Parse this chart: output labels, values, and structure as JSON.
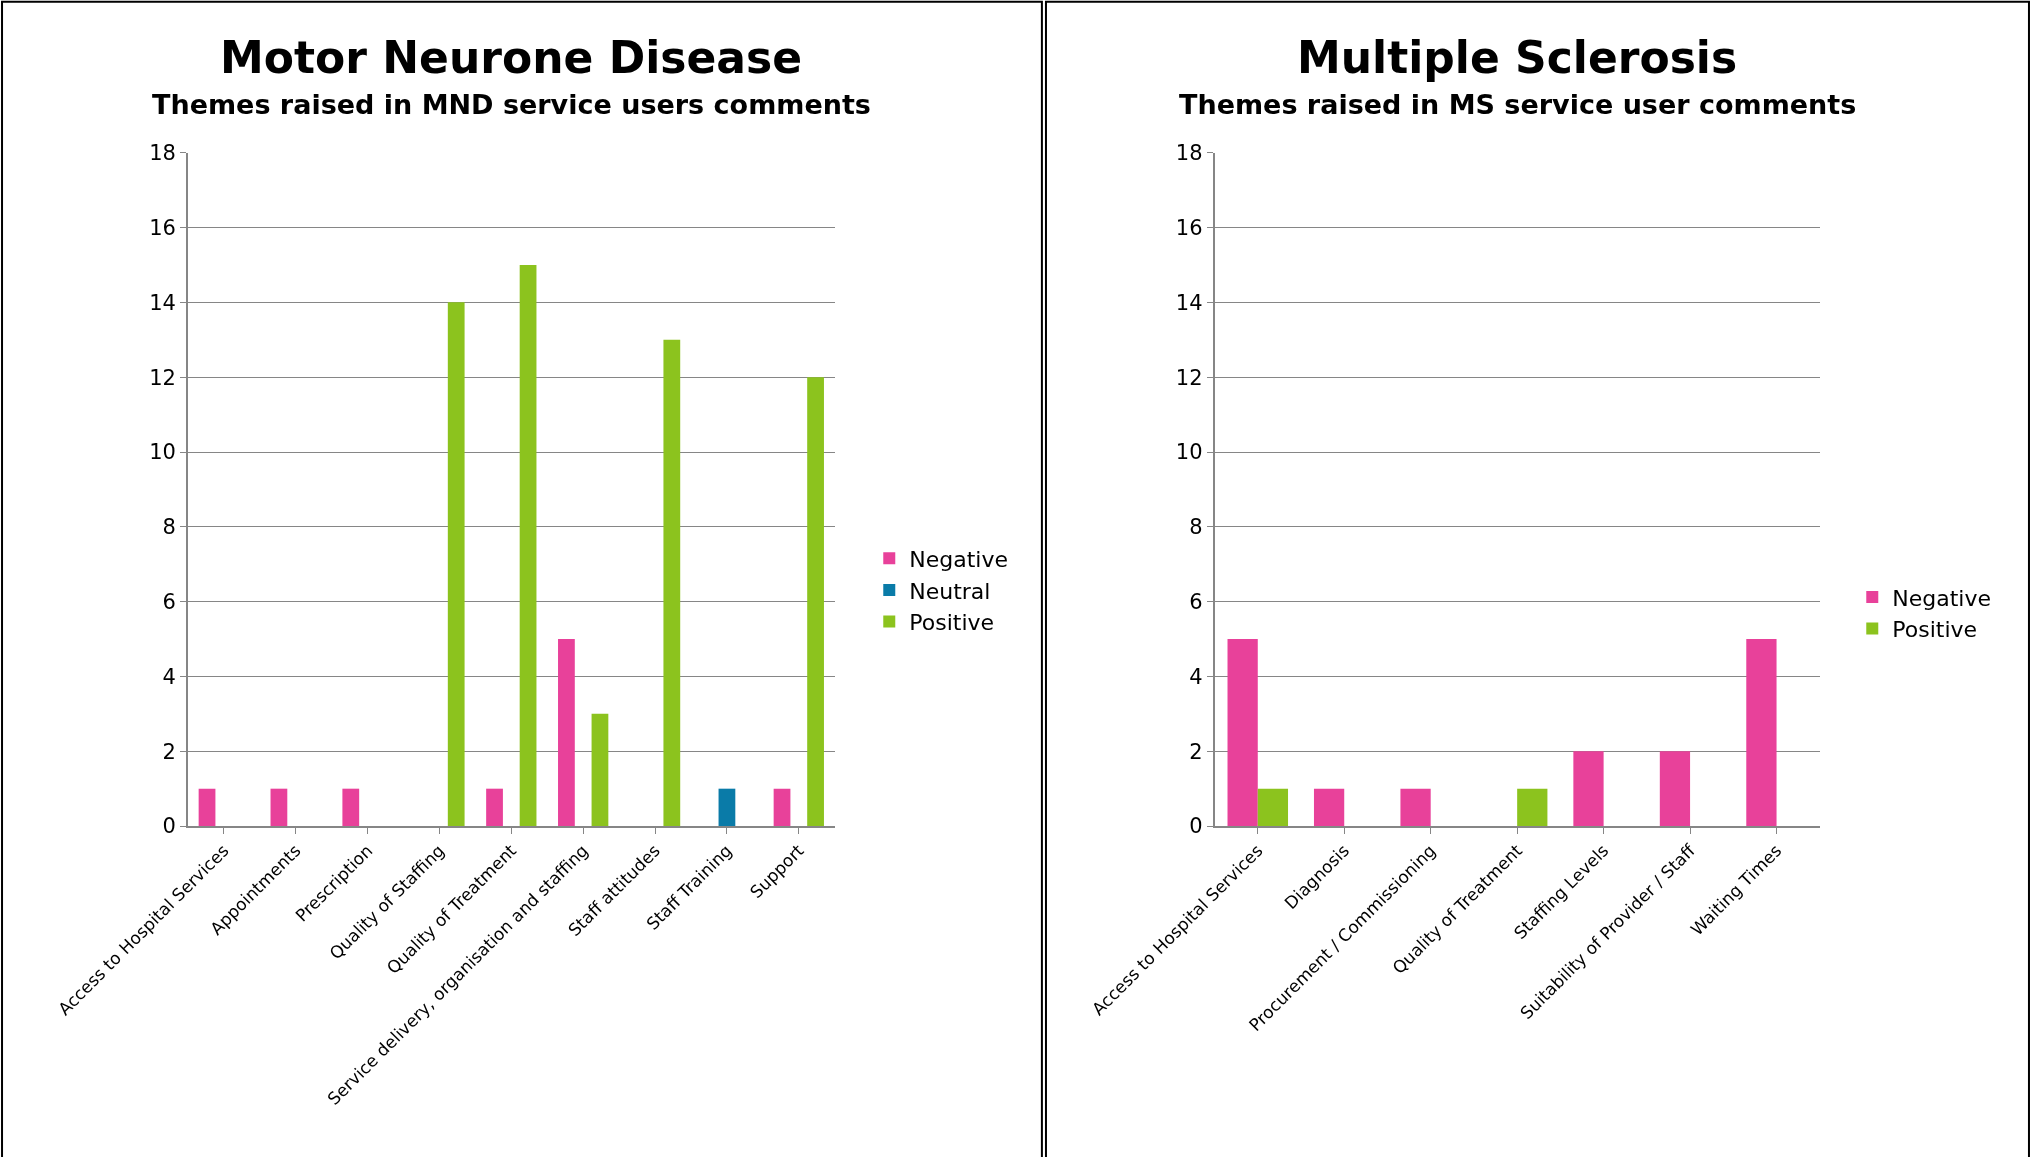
{
  "chart_data": [
    {
      "type": "bar",
      "title": "Motor Neurone Disease",
      "subtitle": "Themes raised in MND service users comments",
      "categories": [
        "Access to Hospital Services",
        "Appointments",
        "Prescription",
        "Quality of Staffing",
        "Quality of Treatment",
        "Service delivery, organisation and staffing",
        "Staff attitudes",
        "Staff Training",
        "Support"
      ],
      "series": [
        {
          "name": "Negative",
          "color": "#e8419a",
          "values": [
            1,
            1,
            1,
            null,
            1,
            5,
            null,
            null,
            1
          ]
        },
        {
          "name": "Neutral",
          "color": "#0a7ba8",
          "values": [
            null,
            null,
            null,
            null,
            null,
            null,
            null,
            1,
            null
          ]
        },
        {
          "name": "Positive",
          "color": "#8cc31e",
          "values": [
            null,
            null,
            null,
            14,
            15,
            3,
            13,
            null,
            12
          ]
        }
      ],
      "ylim": [
        0,
        18
      ],
      "yticks": [
        0,
        2,
        4,
        6,
        8,
        10,
        12,
        14,
        16,
        18
      ],
      "grid": "y",
      "legend": "right"
    },
    {
      "type": "bar",
      "title": "Multiple Sclerosis",
      "subtitle": "Themes raised in MS service user comments",
      "categories": [
        "Access to Hospital Services",
        "Diagnosis",
        "Procurement / Commissioning",
        "Quality of Treatment",
        "Staffing Levels",
        "Suitability of Provider / Staff",
        "Waiting Times"
      ],
      "series": [
        {
          "name": "Negative",
          "color": "#e8419a",
          "values": [
            5,
            1,
            1,
            null,
            2,
            2,
            5
          ]
        },
        {
          "name": "Positive",
          "color": "#8cc31e",
          "values": [
            1,
            null,
            null,
            1,
            null,
            null,
            null
          ]
        }
      ],
      "ylim": [
        0,
        18
      ],
      "yticks": [
        0,
        2,
        4,
        6,
        8,
        10,
        12,
        14,
        16,
        18
      ],
      "grid": "y",
      "legend": "right"
    }
  ]
}
